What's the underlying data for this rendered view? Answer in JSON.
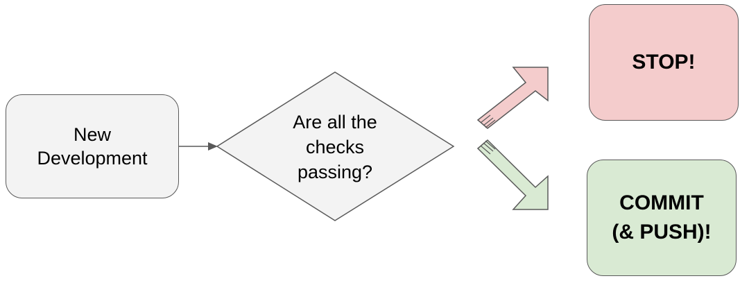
{
  "diagram": {
    "colors": {
      "start_fill": "#f3f3f3",
      "decision_fill": "#f3f3f3",
      "stop_fill": "#f4cccc",
      "commit_fill": "#d9ead3",
      "stroke": "#595959",
      "text": "#000000"
    },
    "start": {
      "line1": "New",
      "line2": "Development"
    },
    "decision": {
      "line1": "Are all the",
      "line2": "checks",
      "line3": "passing?"
    },
    "stop": {
      "label": "STOP!"
    },
    "commit": {
      "line1": "COMMIT",
      "line2": "(& PUSH)!"
    },
    "edges": [
      {
        "from": "start",
        "to": "decision"
      },
      {
        "from": "decision",
        "to": "stop",
        "icon": "arrow-up-right-icon"
      },
      {
        "from": "decision",
        "to": "commit",
        "icon": "arrow-down-right-icon"
      }
    ]
  }
}
